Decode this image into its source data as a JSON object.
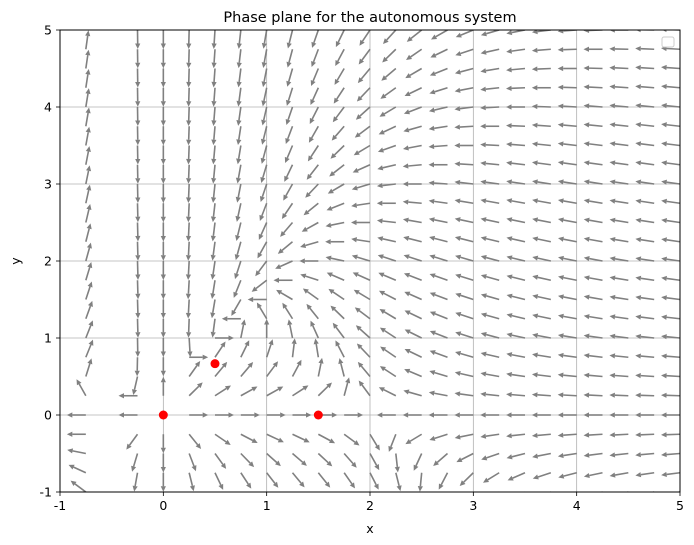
{
  "chart_data": {
    "type": "quiver",
    "title": "Phase plane for the autonomous system",
    "xlabel": "x",
    "ylabel": "y",
    "xlim": [
      -1,
      5
    ],
    "ylim": [
      -1,
      5
    ],
    "x_ticks": [
      -1,
      0,
      1,
      2,
      3,
      4,
      5
    ],
    "y_ticks": [
      -1,
      0,
      1,
      2,
      3,
      4,
      5
    ],
    "grid": true,
    "legend": "top-right (empty)",
    "vector_field": {
      "x_range": [
        -1,
        5
      ],
      "y_range": [
        -1,
        5
      ],
      "samples": 25,
      "normalized": true,
      "arrow_color": "#808080"
    },
    "points": {
      "color": "#ff0000",
      "x": [
        0,
        0.5,
        1.5
      ],
      "y": [
        0,
        0.667,
        0
      ]
    }
  }
}
